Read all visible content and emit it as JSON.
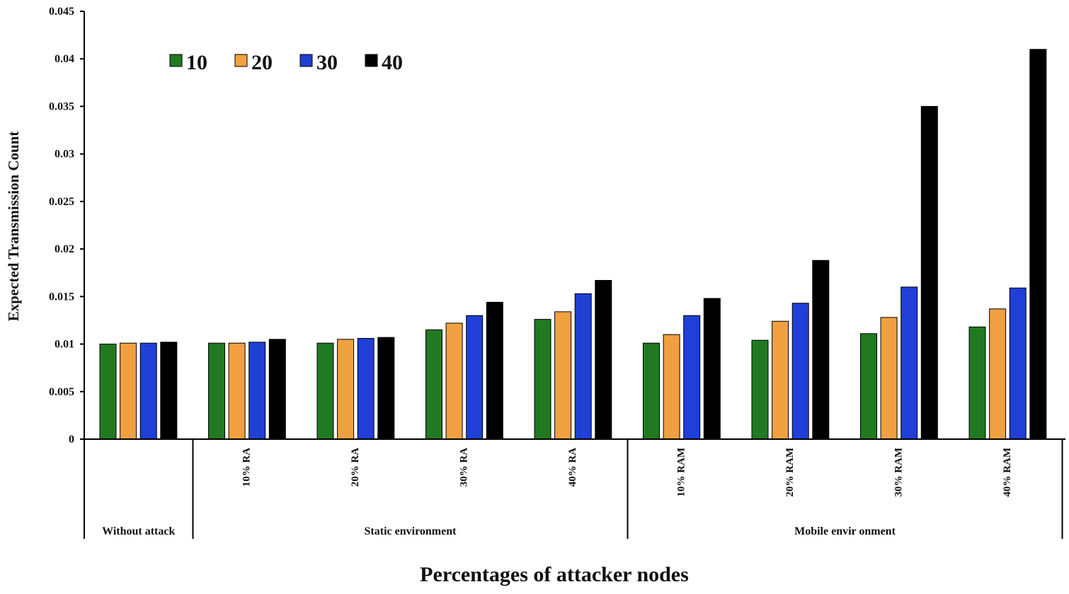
{
  "chart_data": {
    "type": "bar",
    "title": "",
    "xlabel": "Percentages of attacker nodes",
    "ylabel": "Expected Transmission  Count",
    "ylim": [
      0,
      0.045
    ],
    "yticks": [
      0,
      0.005,
      0.01,
      0.015,
      0.02,
      0.025,
      0.03,
      0.035,
      0.04,
      0.045
    ],
    "ytick_labels": [
      "0",
      "0.005",
      "0.01",
      "0.015",
      "0.02",
      "0.025",
      "0.03",
      "0.035",
      "0.04",
      "0.045"
    ],
    "grid": false,
    "legend_position": "top-left",
    "categories": [
      "",
      "10% RA",
      "20% RA",
      "30% RA",
      "40% RA",
      "10% RAM",
      "20% RAM",
      "30% RAM",
      "40% RAM"
    ],
    "groups": [
      {
        "label": "Without attack",
        "categories": [
          0
        ]
      },
      {
        "label": "Static environment",
        "categories": [
          1,
          2,
          3,
          4
        ]
      },
      {
        "label": "Mobile envir onment",
        "categories": [
          5,
          6,
          7,
          8
        ]
      }
    ],
    "series": [
      {
        "name": "10",
        "color": "#217a21",
        "values": [
          0.01,
          0.0101,
          0.0101,
          0.0115,
          0.0126,
          0.0101,
          0.0104,
          0.0111,
          0.0118
        ]
      },
      {
        "name": "20",
        "color": "#f0a040",
        "values": [
          0.0101,
          0.0101,
          0.0105,
          0.0122,
          0.0134,
          0.011,
          0.0124,
          0.0128,
          0.0137
        ]
      },
      {
        "name": "30",
        "color": "#1f3fd6",
        "values": [
          0.0101,
          0.0102,
          0.0106,
          0.013,
          0.0153,
          0.013,
          0.0143,
          0.016,
          0.0159
        ]
      },
      {
        "name": "40",
        "color": "#000000",
        "values": [
          0.0102,
          0.0105,
          0.0107,
          0.0144,
          0.0167,
          0.0148,
          0.0188,
          0.035,
          0.041
        ]
      }
    ]
  }
}
